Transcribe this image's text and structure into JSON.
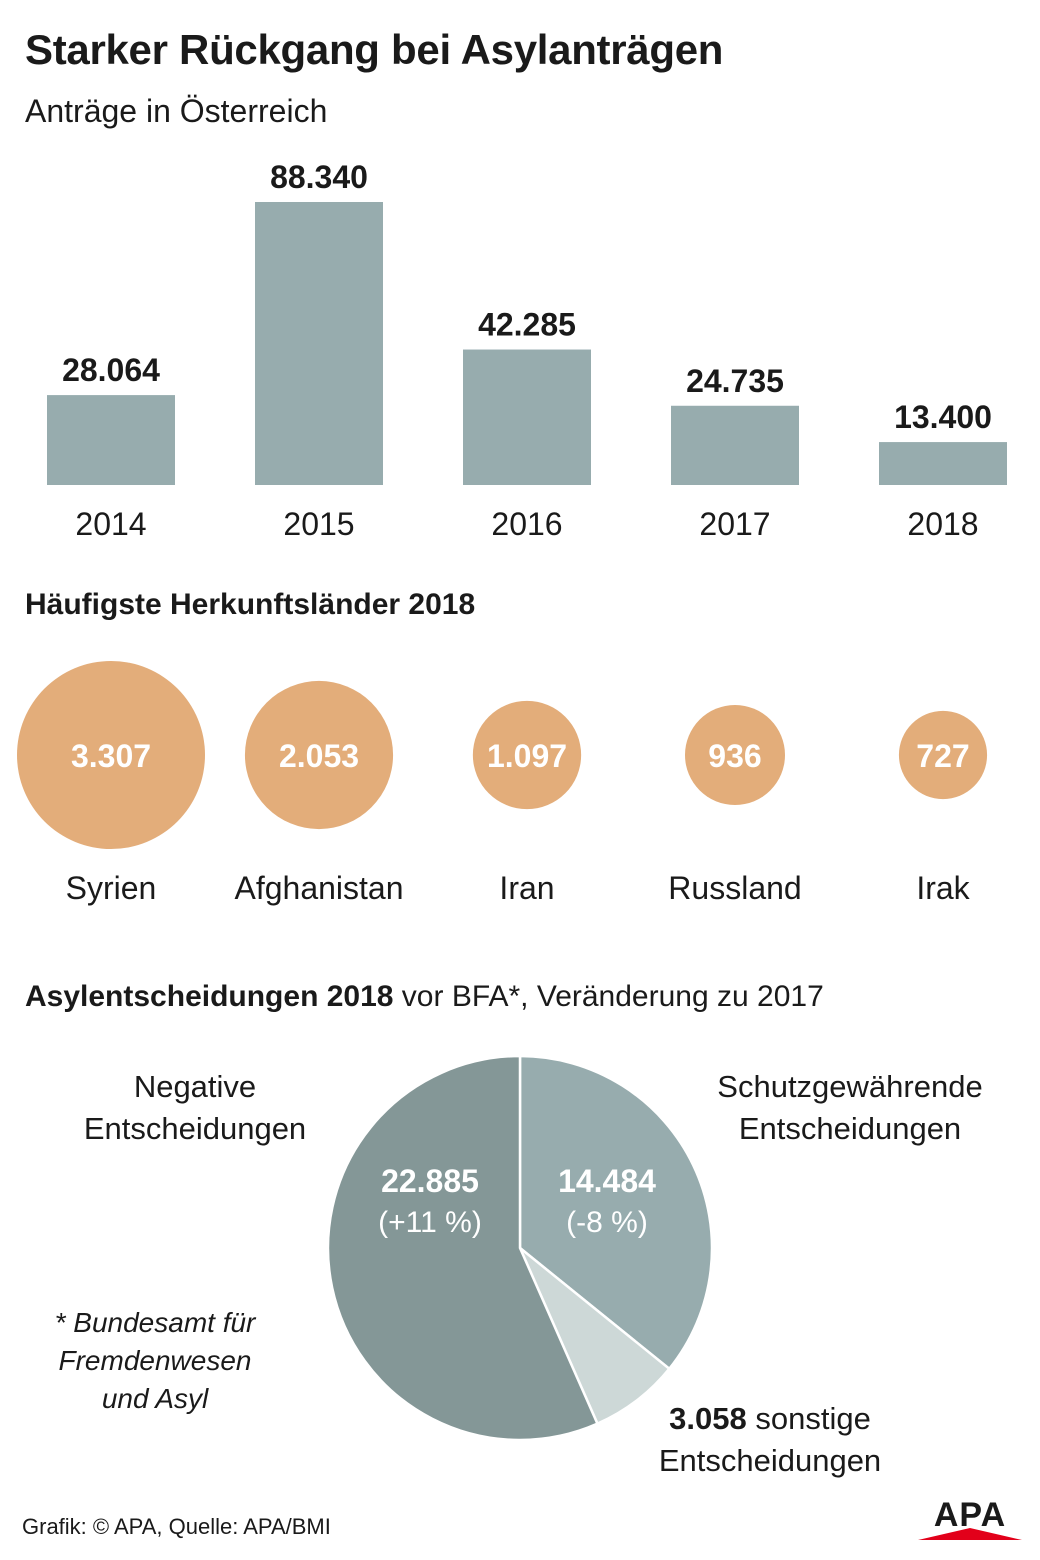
{
  "title": "Starker Rückgang bei Asylanträgen",
  "subtitle": "Anträge in Österreich",
  "section2_title": "Häufigste Herkunftsländer 2018",
  "section3_title_bold": "Asylentscheidungen 2018",
  "section3_title_rest": " vor BFA*, Veränderung zu 2017",
  "footnote": [
    "* Bundesamt für",
    "Fremdenwesen",
    "und Asyl"
  ],
  "source": "Grafik: © APA, Quelle: APA/BMI",
  "logo_text": "APA",
  "colors": {
    "bar": "#97acae",
    "bubble": "#e3ad7a",
    "pie_negative": "#849797",
    "pie_positive": "#97acae",
    "pie_other": "#cdd8d7",
    "text": "#1a1a1a",
    "logo": "#e2001a"
  },
  "chart_data": [
    {
      "type": "bar",
      "title": "Anträge in Österreich",
      "categories": [
        "2014",
        "2015",
        "2016",
        "2017",
        "2018"
      ],
      "values": [
        28064,
        88340,
        42285,
        24735,
        13400
      ],
      "value_labels": [
        "28.064",
        "88.340",
        "42.285",
        "24.735",
        "13.400"
      ],
      "ylim": [
        0,
        88340
      ]
    },
    {
      "type": "scatter",
      "title": "Häufigste Herkunftsländer 2018",
      "categories": [
        "Syrien",
        "Afghanistan",
        "Iran",
        "Russland",
        "Irak"
      ],
      "values": [
        3307,
        2053,
        1097,
        936,
        727
      ],
      "value_labels": [
        "3.307",
        "2.053",
        "1.097",
        "936",
        "727"
      ]
    },
    {
      "type": "pie",
      "title": "Asylentscheidungen 2018 vor BFA*, Veränderung zu 2017",
      "slices": [
        {
          "name": "Schutzgewährende Entscheidungen",
          "value": 14484,
          "label": "14.484",
          "change": "(-8 %)"
        },
        {
          "name": "sonstige Entscheidungen",
          "value": 3058,
          "label": "3.058",
          "change": ""
        },
        {
          "name": "Negative Entscheidungen",
          "value": 22885,
          "label": "22.885",
          "change": "(+11 %)"
        }
      ],
      "labels": {
        "negative": [
          "Negative",
          "Entscheidungen"
        ],
        "positive": [
          "Schutzgewährende",
          "Entscheidungen"
        ],
        "other_value": "3.058",
        "other_text": " sonstige",
        "other_line2": "Entscheidungen"
      }
    }
  ]
}
